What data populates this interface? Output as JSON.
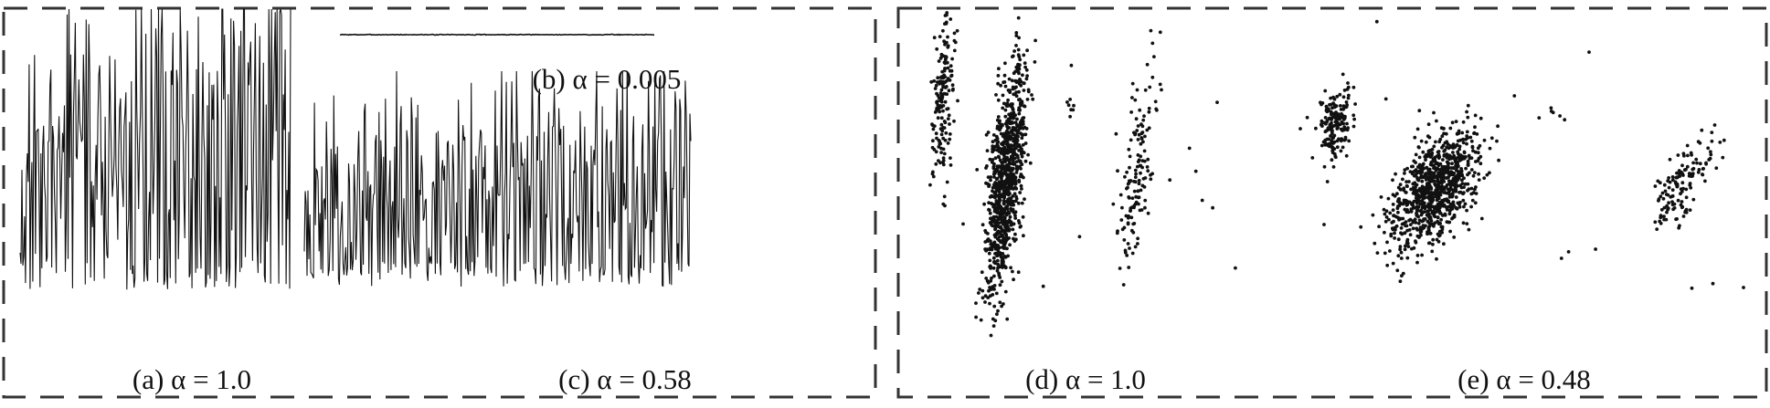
{
  "figure": {
    "panels": [
      {
        "id": "a",
        "caption": "(a) α = 1.0"
      },
      {
        "id": "b",
        "caption": "(b) α = 0.005"
      },
      {
        "id": "c",
        "caption": "(c) α = 0.58"
      },
      {
        "id": "d",
        "caption": "(d) α = 1.0"
      },
      {
        "id": "e",
        "caption": "(e) α = 0.48"
      }
    ]
  },
  "chart_data": [
    {
      "type": "line",
      "panel": "a",
      "title": "(a) α = 1.0",
      "series_shape": {
        "kind": "oscillating",
        "samples": 300,
        "seed": 11,
        "amplitude": 1.0,
        "baseline": 0.3,
        "spikiness": 1.0,
        "ramp": 0.6
      },
      "ylim": [
        0,
        1
      ]
    },
    {
      "type": "line",
      "panel": "b",
      "title": "(b) α = 0.005",
      "series_shape": {
        "kind": "flat",
        "samples": 300,
        "seed": 3,
        "amplitude": 0.005,
        "baseline": 0.5
      },
      "ylim": [
        0,
        1
      ]
    },
    {
      "type": "line",
      "panel": "c",
      "title": "(c) α = 0.58",
      "series_shape": {
        "kind": "oscillating",
        "samples": 420,
        "seed": 23,
        "amplitude": 0.58,
        "baseline": 0.28,
        "spikiness": 0.8,
        "ramp": 0.4
      },
      "ylim": [
        0,
        1
      ]
    },
    {
      "type": "scatter",
      "panel": "d",
      "title": "(d) α = 1.0",
      "seed": 41,
      "clusters": [
        {
          "cx": 0.09,
          "cy": 0.25,
          "sx": 0.02,
          "sy": 0.14,
          "rho": 0.55,
          "n": 170
        },
        {
          "cx": 0.28,
          "cy": 0.52,
          "sx": 0.04,
          "sy": 0.2,
          "rho": 0.8,
          "n": 900
        },
        {
          "cx": 0.68,
          "cy": 0.48,
          "sx": 0.035,
          "sy": 0.16,
          "rho": 0.75,
          "n": 140
        },
        {
          "cx": 0.47,
          "cy": 0.28,
          "sx": 0.015,
          "sy": 0.02,
          "rho": 0.3,
          "n": 7
        }
      ],
      "outliers": 18
    },
    {
      "type": "scatter",
      "panel": "e",
      "title": "(e) α = 0.48",
      "seed": 57,
      "clusters": [
        {
          "cx": 0.08,
          "cy": 0.36,
          "sx": 0.02,
          "sy": 0.06,
          "rho": 0.4,
          "n": 170
        },
        {
          "cx": 0.3,
          "cy": 0.57,
          "sx": 0.06,
          "sy": 0.1,
          "rho": 0.72,
          "n": 900
        },
        {
          "cx": 0.84,
          "cy": 0.55,
          "sx": 0.045,
          "sy": 0.075,
          "rho": 0.85,
          "n": 140
        },
        {
          "cx": 0.56,
          "cy": 0.31,
          "sx": 0.015,
          "sy": 0.015,
          "rho": 0.3,
          "n": 6
        }
      ],
      "outliers": 14
    }
  ]
}
